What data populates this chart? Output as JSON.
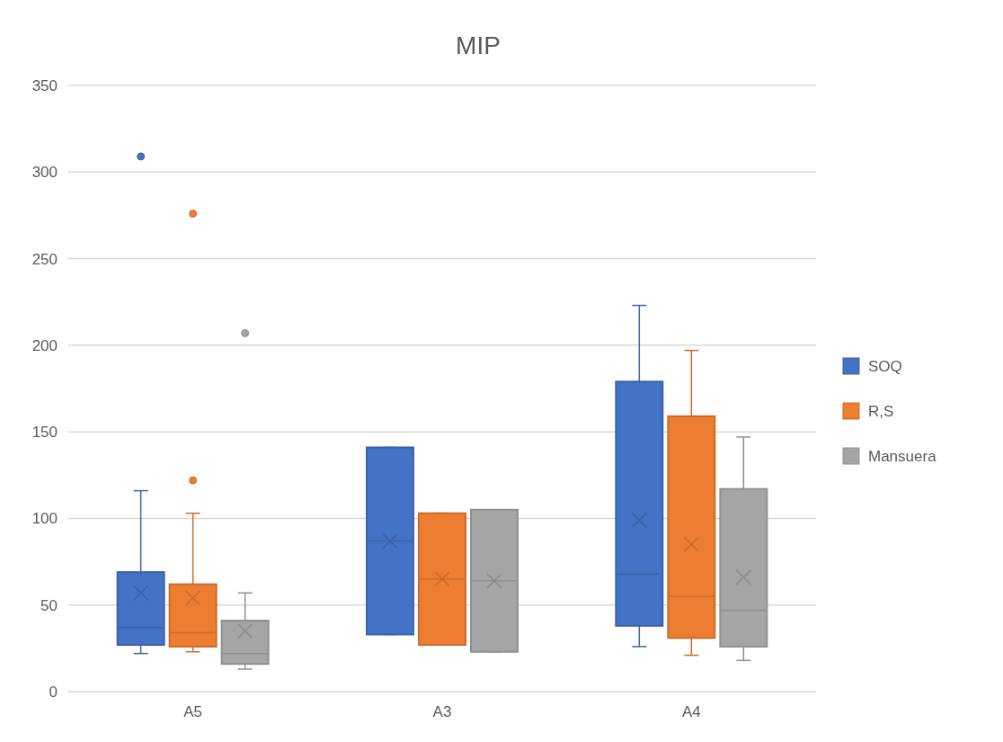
{
  "chart_data": {
    "type": "box",
    "title": "MIP",
    "categories": [
      "A5",
      "A3",
      "A4"
    ],
    "ylim": [
      0,
      350
    ],
    "yticks": [
      0,
      50,
      100,
      150,
      200,
      250,
      300,
      350
    ],
    "grid": "y",
    "legend": "right",
    "marker": "cross",
    "series": [
      {
        "name": "SOQ",
        "color": "#4472c4",
        "boxes": [
          {
            "low": 22,
            "q1": 27,
            "median": 37,
            "q3": 69,
            "high": 116,
            "mean": 57,
            "outliers": [
              309
            ]
          },
          {
            "low": 33,
            "q1": 33,
            "median": 87,
            "q3": 141,
            "high": 141,
            "mean": 87
          },
          {
            "low": 26,
            "q1": 38,
            "median": 68,
            "q3": 179,
            "high": 223,
            "mean": 99
          }
        ]
      },
      {
        "name": "R,S",
        "color": "#ed7d31",
        "boxes": [
          {
            "low": 23,
            "q1": 26,
            "median": 34,
            "q3": 62,
            "high": 103,
            "mean": 54,
            "outliers": [
              122,
              276
            ]
          },
          {
            "low": 27,
            "q1": 27,
            "median": 65,
            "q3": 103,
            "high": 103,
            "mean": 65
          },
          {
            "low": 21,
            "q1": 31,
            "median": 55,
            "q3": 159,
            "high": 197,
            "mean": 85
          }
        ]
      },
      {
        "name": "Mansuera",
        "color": "#a5a5a5",
        "boxes": [
          {
            "low": 13,
            "q1": 16,
            "median": 22,
            "q3": 41,
            "high": 57,
            "mean": 35,
            "outliers": [
              207
            ]
          },
          {
            "low": 23,
            "q1": 23,
            "median": 64,
            "q3": 105,
            "high": 105,
            "mean": 64
          },
          {
            "low": 18,
            "q1": 26,
            "median": 47,
            "q3": 117,
            "high": 147,
            "mean": 66
          }
        ]
      }
    ]
  }
}
